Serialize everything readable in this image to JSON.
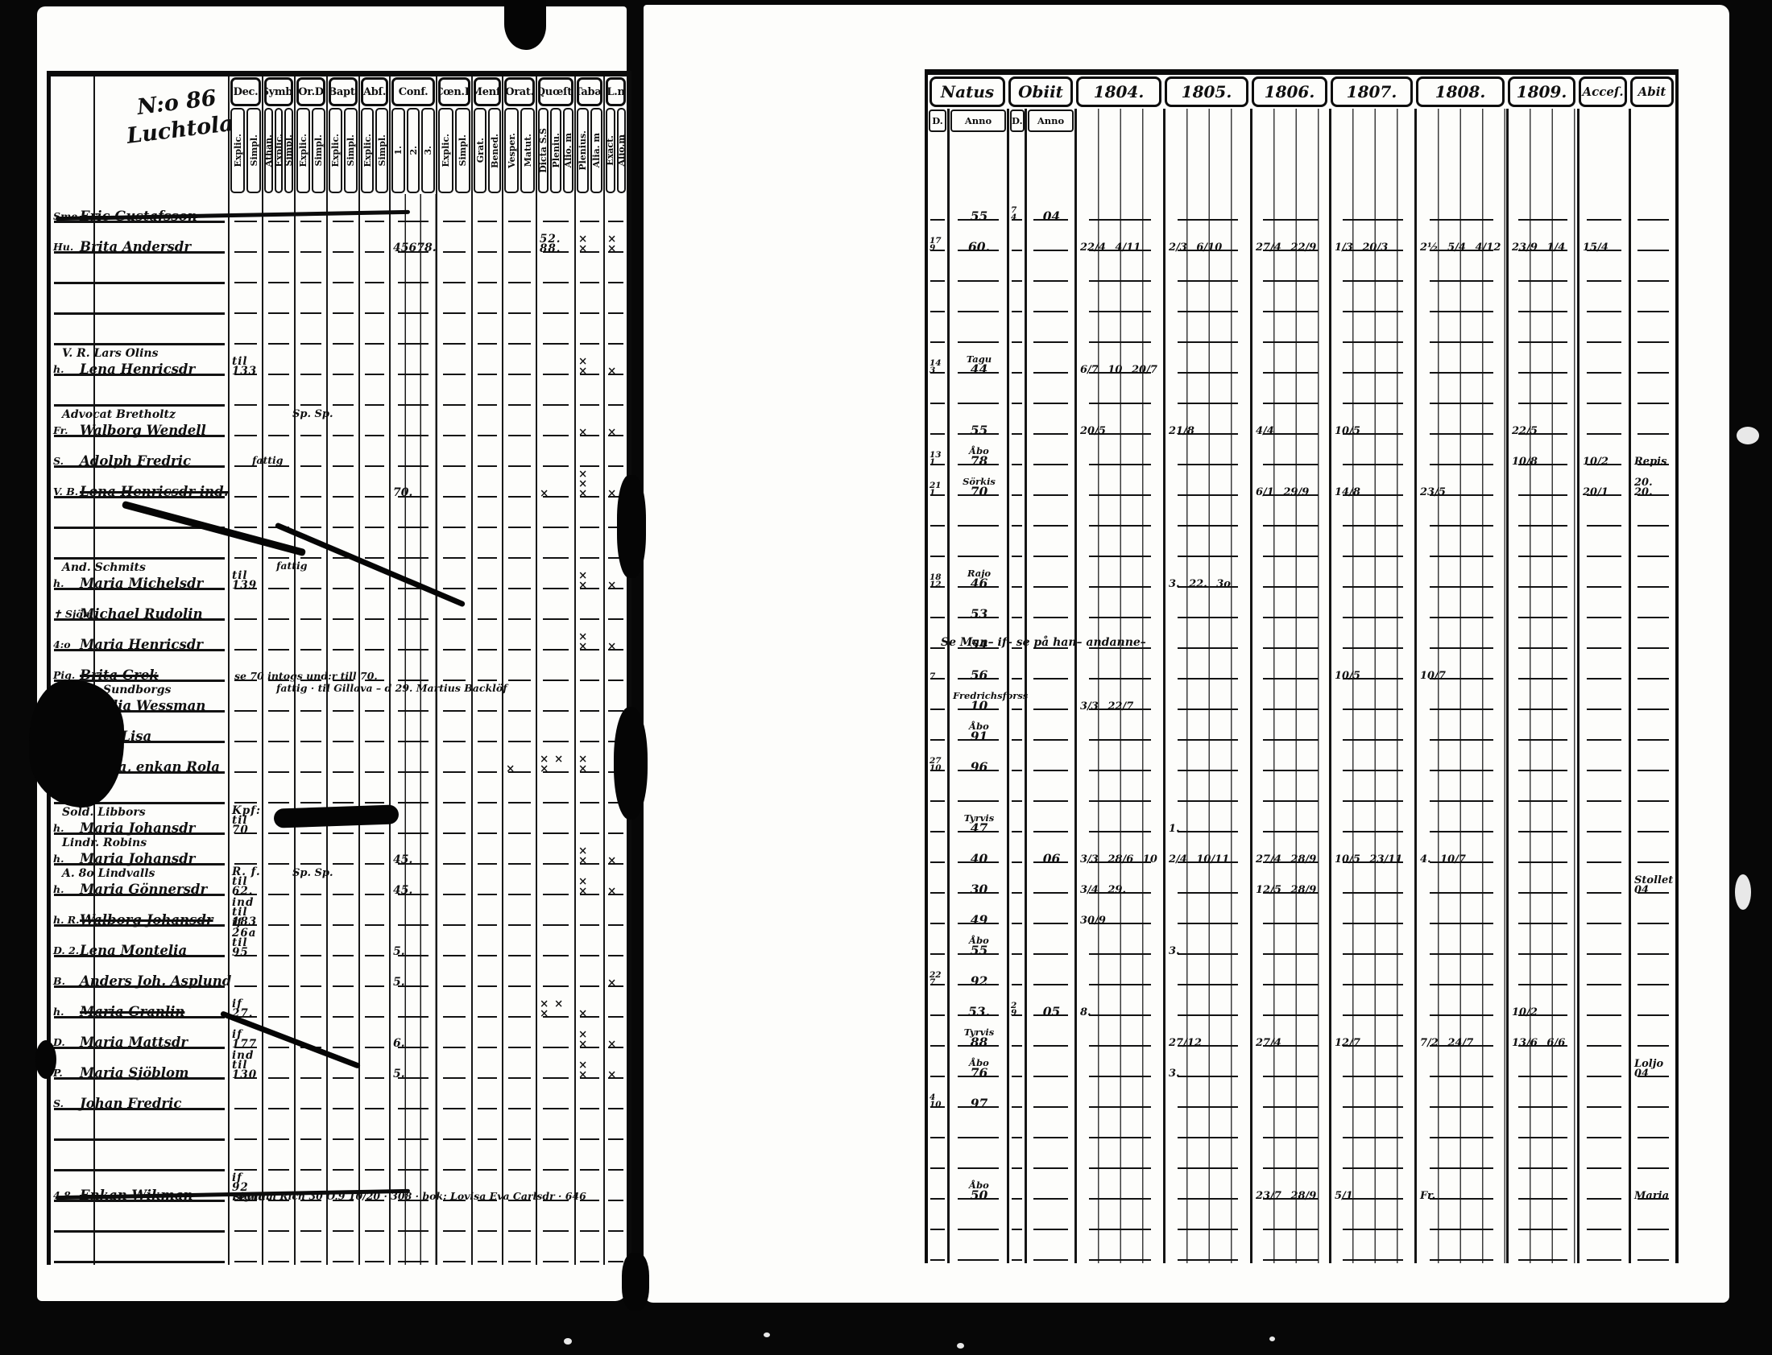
{
  "meta": {
    "film_bg": "#070707",
    "page_bg": "#fdfdfb",
    "ink": "#101010"
  },
  "left_page": {
    "corner_note": "N:o 86",
    "village": "Luchtola",
    "columns": [
      {
        "label": "Dec.",
        "subs": [
          "Explic.",
          "Simpl."
        ]
      },
      {
        "label": "Symb.",
        "subs": [
          "Athan.",
          "Explic.",
          "Simpl."
        ]
      },
      {
        "label": "Or.D",
        "subs": [
          "Explic.",
          "Simpl."
        ]
      },
      {
        "label": "Bapt.",
        "subs": [
          "Explic.",
          "Simpl."
        ]
      },
      {
        "label": "Abſ.",
        "subs": [
          "Explic.",
          "Simpl."
        ]
      },
      {
        "label": "Conf.",
        "subs": [
          "1.",
          "2.",
          "3."
        ]
      },
      {
        "label": "Cœn.D",
        "subs": [
          "Explic.",
          "Simpl."
        ]
      },
      {
        "label": "Menſ.",
        "subs": [
          "Grat.",
          "Bened."
        ]
      },
      {
        "label": "Orat.",
        "subs": [
          "Vesper.",
          "Matut."
        ]
      },
      {
        "label": "Quœſt.",
        "subs": [
          "Dicta S.S",
          "Pleniu.",
          "Alio. m"
        ]
      },
      {
        "label": "Tabæ",
        "subs": [
          "Plenius.",
          "Alia. m"
        ]
      },
      {
        "label": "L.n",
        "subs": [
          "Exact.",
          "Alio.m"
        ]
      }
    ]
  },
  "right_page": {
    "natus_label": "Natus",
    "obiit_label": "Obiit",
    "sub_d": "D.",
    "sub_anno": "Anno",
    "years": [
      "1804.",
      "1805.",
      "1806.",
      "1807.",
      "1808.",
      "1809."
    ],
    "acces_label": "Acceſ.",
    "abit_label": "Abit"
  },
  "rows": [
    {
      "pre": "Sme.",
      "name": "Eric Gustafsson",
      "struck": true,
      "rowstrike": true,
      "na": "55",
      "od": "7/4",
      "oa": "04"
    },
    {
      "pre": "Hu.",
      "name": "Brita Andersdr",
      "conf": "45678.",
      "qu": "52. 88.",
      "tb": "× ×",
      "ln": "× ×",
      "nd": "17/9",
      "na": "60.",
      "y04": "22/4 4/11",
      "y05": "2/3 6/10",
      "y06": "27/4 22/9",
      "y07": "1/3 20/3",
      "y08": "2½ 5/4 4/12",
      "y09": "23/9 1/4",
      "acc": "15/4"
    },
    {},
    {},
    {},
    {
      "hdr": "V. R. Lars Olins",
      "pre": "h.",
      "name": "Lena Henricsdr",
      "dec": "til 133",
      "tb": "× ×",
      "ln": "×",
      "nd": "14/3",
      "na": "Tagu|44",
      "y04": "6/7 10 20/7"
    },
    {},
    {
      "hdr": "Advocat Bretholtz",
      "hnote": "Sp. Sp.",
      "pre": "Fr.",
      "name": "Walborg Wendell",
      "tb": "×",
      "ln": "×",
      "na": "55",
      "y04": "20/5",
      "y05": "21/8",
      "y06": "4/4",
      "y07": "10/5",
      "y09": "22/5"
    },
    {
      "pre": "S.",
      "name": "Adolph Fredric",
      "note": "fattig",
      "nd": "13/1",
      "na": "Åbo|78",
      "y09": "10/8",
      "acc": "10/2",
      "abt": "Repis"
    },
    {
      "pre": "V. B.",
      "name": "Lena Henricsdr ind.",
      "struck": true,
      "conf": "70.",
      "qu": "×",
      "tb": "× × ×",
      "ln": "×",
      "nd": "21/1",
      "na": "Sörkis|70",
      "y06": "6/1 29/9",
      "y07": "14/8",
      "y08": "23/5",
      "acc": "20/1",
      "abt": "20. 20."
    },
    {},
    {},
    {
      "hdr": "And. Schmits",
      "tailtop": "fattig",
      "pre": "h.",
      "name": "Maria Michelsdr",
      "dec": "til 139",
      "tb": "× ×",
      "ln": "×",
      "nd": "18/12",
      "na": "Rajo|46",
      "y05": "3. 22. 3o"
    },
    {
      "pre": "✝ Sjöm.",
      "name": "Michael Rudolin",
      "na": "53"
    },
    {
      "pre": "4:o",
      "name": "Maria Henricsdr",
      "tb": "× ×",
      "ln": "×",
      "na": "54",
      "rnote": "Se Man– if– se på han– andanne–"
    },
    {
      "pre": "Pig.",
      "name": "Brita Grek",
      "struck": true,
      "tail": "se 70 intogs und:r till 70.",
      "nd": "7/",
      "na": "56",
      "y07": "10/5",
      "y08": "10/7"
    },
    {
      "hdr": "Lindr. Sundborgs",
      "tailtop": "fattig · til Gillava – d 29. Martius Backlöf",
      "pre": "h.",
      "name": "Amalia Wessman",
      "na": "Fredrichsforss|10",
      "y04": "3/3 22/7"
    },
    {
      "pre": "D.",
      "name": "Maja Lisa",
      "na": "Åbo|91"
    },
    {
      "pre": "P.",
      "name": "Lovisa, enkan Rola",
      "orat": "×",
      "qu": "× × ×",
      "tb": "× ×",
      "nd": "27/10",
      "na": "96"
    },
    {},
    {
      "hdr": "Sold. Libbors",
      "pre": "h.",
      "name": "Maria Johansdr",
      "dec": "Kpf: til 70",
      "na": "Tyrvis|47",
      "y05": "1."
    },
    {
      "hdr": "Lindr. Robins",
      "pre": "h.",
      "name": "Maria Johansdr",
      "conf": "45.",
      "tb": "× ×",
      "ln": "×",
      "na": "40",
      "oa": "06",
      "y04": "3/3 28/6 10",
      "y05": "2/4 10/11",
      "y06": "27/4 28/9",
      "y07": "10/5 23/11",
      "y08": "4. 10/7"
    },
    {
      "hdr": "A. 8o Lindvalls",
      "hnote": "Sp. Sp.",
      "pre": "h.",
      "name": "Maria Gönnersdr",
      "dec": "R. f. til 62.",
      "conf": "45.",
      "tb": "× ×",
      "ln": "×",
      "na": "30",
      "y04": "3/4 29.",
      "y06": "12/5 28/9",
      "abt": "Stollet|04"
    },
    {
      "pre": "h. R.",
      "name": "Walborg Johansdr",
      "struck": true,
      "dec": "ind til 183",
      "na": "49",
      "y04": "30/9"
    },
    {
      "pre": "D. 2.",
      "name": "Lena Montelia",
      "dec": "if 26a til 95",
      "conf": "5.",
      "na": "Åbo|55",
      "y05": "3."
    },
    {
      "pre": "B.",
      "name": "Anders Joh. Asplund",
      "conf": "5.",
      "ln": "×",
      "nd": "22/7",
      "na": "92"
    },
    {
      "pre": "h.",
      "name": "Maria Granlin",
      "struck": true,
      "dec": "if 27.",
      "qu": "× × ×",
      "tb": "×",
      "na": "53.",
      "od": "2/9",
      "oa": "05",
      "y04": "8.",
      "y09": "10/2"
    },
    {
      "pre": "D.",
      "name": "Maria Mattsdr",
      "dec": "if 177",
      "conf": "6.",
      "tb": "× ×",
      "ln": "×",
      "na": "Tyrvis|88",
      "y05": "27/12",
      "y06": "27/4",
      "y07": "12/7",
      "y08": "7/2 24/7",
      "y09": "13/6 6/6"
    },
    {
      "pre": "P.",
      "name": "Maria Sjöblom",
      "dec": "ind til 130",
      "conf": "5.",
      "tb": "× ×",
      "ln": "×",
      "na": "Åbo|76",
      "y05": "3.",
      "abt": "Loljo|04"
    },
    {
      "pre": "S.",
      "name": "Johan Fredric",
      "nd": "4/10",
      "na": "97"
    },
    {},
    {},
    {
      "pre": "4.8.",
      "name": "Enkan Wikman",
      "struck": true,
      "rowstrike": true,
      "dec": "if 92 revid.",
      "tail": "signum Rich 30 O.9 10/20 · 308 · bok: Lovisa Eva Carlsdr · 646",
      "na": "Åbo|50",
      "y06": "23/7 28/9",
      "y07": "5/1",
      "y08": "Fr.",
      "abt": "Maria"
    },
    {},
    {}
  ]
}
